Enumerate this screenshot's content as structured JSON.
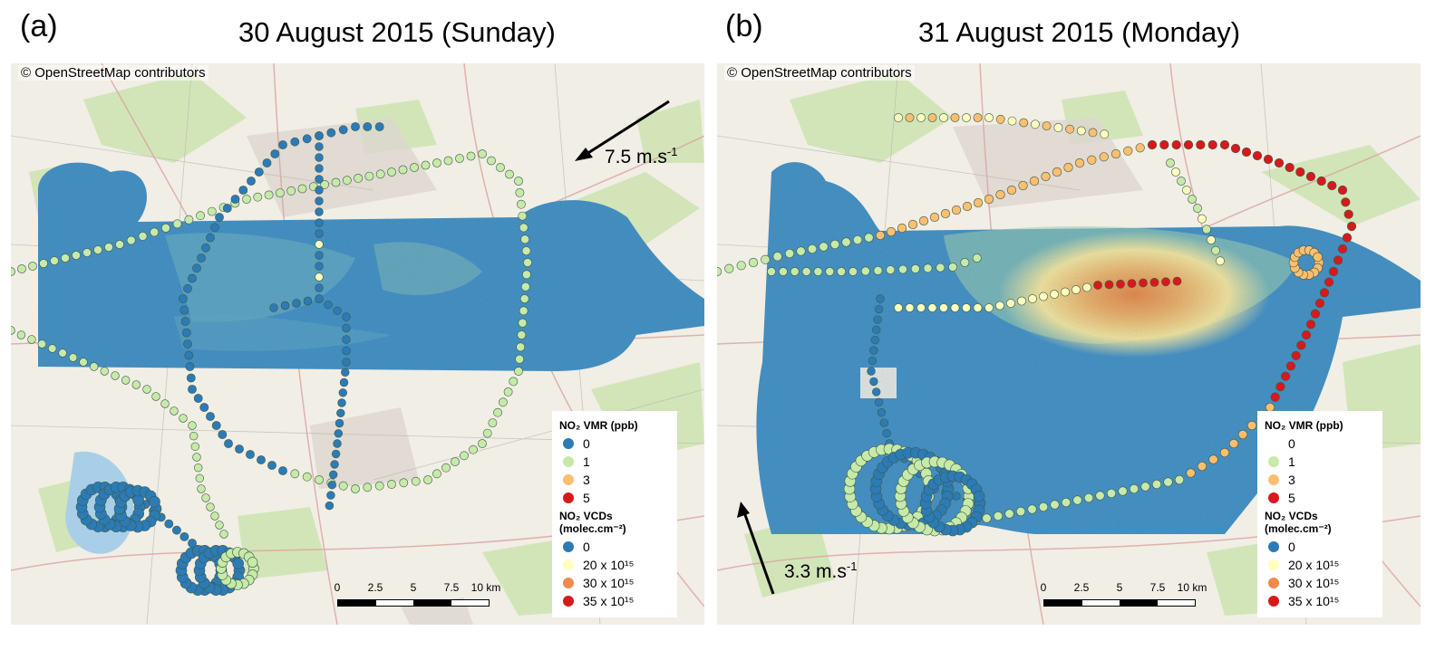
{
  "panels": [
    {
      "letter": "(a)",
      "title": "30 August 2015 (Sunday)",
      "attribution": "© OpenStreetMap contributors",
      "wind": {
        "speed": "7.5 m.s",
        "exp": "-1",
        "direction": "from east"
      },
      "legend": {
        "vmr_title": "NO₂ VMR (ppb)",
        "vmr_items": [
          {
            "label": "0",
            "color": "#2c7bb6"
          },
          {
            "label": "1",
            "color": "#c7e9a9"
          },
          {
            "label": "3",
            "color": "#fdbe6f"
          },
          {
            "label": "5",
            "color": "#d7191c"
          }
        ],
        "vcd_title": "NO₂ VCDs (molec.cm⁻²)",
        "vcd_items": [
          {
            "label": "0",
            "color": "#2c7bb6"
          },
          {
            "label": "20 x 10¹⁵",
            "color": "#ffffbf"
          },
          {
            "label": "30 x 10¹⁵",
            "color": "#f08a4b"
          },
          {
            "label": "35 x 10¹⁵",
            "color": "#d7191c"
          }
        ]
      },
      "scalebar": {
        "ticks": [
          "0",
          "2.5",
          "5",
          "7.5",
          "10 km"
        ]
      }
    },
    {
      "letter": "(b)",
      "title": "31 August 2015 (Monday)",
      "attribution": "© OpenStreetMap contributors",
      "wind": {
        "speed": "3.3 m.s",
        "exp": "-1",
        "direction": "from south"
      },
      "legend": {
        "vmr_title": "NO₂ VMR (ppb)",
        "vmr_items": [
          {
            "label": "0",
            "color": "#2c7bb6"
          },
          {
            "label": "1",
            "color": "#c7e9a9"
          },
          {
            "label": "3",
            "color": "#fdbe6f"
          },
          {
            "label": "5",
            "color": "#d7191c"
          }
        ],
        "vcd_title": "NO₂ VCDs (molec.cm⁻²)",
        "vcd_items": [
          {
            "label": "0",
            "color": "#2c7bb6"
          },
          {
            "label": "20 x 10¹⁵",
            "color": "#ffffbf"
          },
          {
            "label": "30 x 10¹⁵",
            "color": "#f08a4b"
          },
          {
            "label": "35 x 10¹⁵",
            "color": "#d7191c"
          }
        ]
      },
      "scalebar": {
        "ticks": [
          "0",
          "2.5",
          "5",
          "7.5",
          "10 km"
        ]
      }
    }
  ]
}
